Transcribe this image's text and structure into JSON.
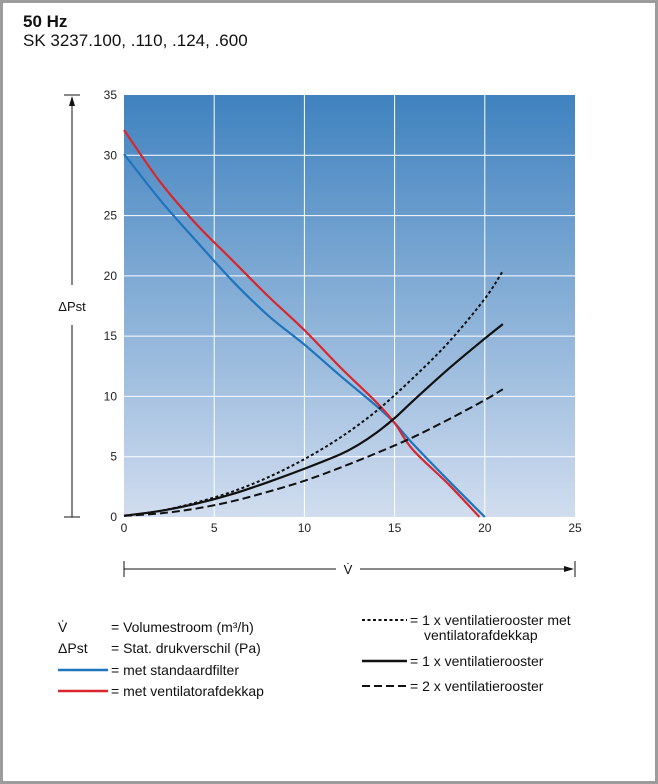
{
  "header": {
    "title": "50 Hz",
    "subtitle": "SK 3237.100, .110, .124, .600"
  },
  "chart_data": {
    "type": "line",
    "xlabel": "V̇",
    "ylabel": "ΔPst",
    "xlim": [
      0,
      25
    ],
    "ylim": [
      0,
      35
    ],
    "xticks": [
      "0",
      "5",
      "10",
      "15",
      "20",
      "25"
    ],
    "yticks": [
      "0",
      "5",
      "10",
      "15",
      "20",
      "25",
      "30",
      "35"
    ],
    "grid": true,
    "background_gradient": [
      "#3f82bf",
      "#d1ddef"
    ],
    "series": [
      {
        "name": "met standaardfilter",
        "color": "#1e74bd",
        "style": "solid",
        "x": [
          0,
          2,
          4,
          6,
          8,
          10,
          12,
          14,
          15,
          16,
          18,
          20
        ],
        "y": [
          30.1,
          26.3,
          22.9,
          19.6,
          16.7,
          14.3,
          11.7,
          9.2,
          7.8,
          6.1,
          3.0,
          0
        ]
      },
      {
        "name": "met ventilatorafdekkap",
        "color": "#d9262c",
        "style": "solid",
        "x": [
          0,
          2,
          4,
          6,
          8,
          10,
          12,
          14,
          15,
          16,
          18,
          19.7
        ],
        "y": [
          32.1,
          27.8,
          24.3,
          21.3,
          18.3,
          15.5,
          12.4,
          9.5,
          7.8,
          5.6,
          2.7,
          0
        ]
      },
      {
        "name": "1 x ventilatierooster met ventilatorafdekkap",
        "color": "#111111",
        "style": "dotted",
        "x": [
          0,
          2,
          4,
          6,
          8,
          10,
          12,
          14,
          16,
          18,
          20,
          21
        ],
        "y": [
          0.1,
          0.5,
          1.2,
          2.1,
          3.3,
          4.8,
          6.6,
          8.8,
          11.5,
          14.5,
          18.1,
          20.4
        ]
      },
      {
        "name": "1 x ventilatierooster",
        "color": "#111111",
        "style": "solid",
        "x": [
          0,
          2,
          4,
          6,
          8,
          10,
          12,
          13,
          14,
          15,
          16,
          18,
          20,
          21
        ],
        "y": [
          0.1,
          0.5,
          1.1,
          1.9,
          2.9,
          4.0,
          5.2,
          6.0,
          7.0,
          8.2,
          9.6,
          12.3,
          14.8,
          16.0
        ]
      },
      {
        "name": "2 x ventilatierooster",
        "color": "#111111",
        "style": "dashed",
        "x": [
          0,
          2,
          4,
          6,
          8,
          10,
          12,
          14,
          16,
          18,
          20,
          21
        ],
        "y": [
          0.1,
          0.3,
          0.7,
          1.3,
          2.1,
          3.0,
          4.1,
          5.3,
          6.6,
          8.1,
          9.7,
          10.6
        ]
      }
    ]
  },
  "legend": {
    "vdot_symbol": "V̇",
    "vdot_text": "= Volumestroom (m³/h)",
    "dp_symbol": "ΔPst",
    "dp_text": "= Stat. drukverschil (Pa)",
    "standaardfilter": "= met standaardfilter",
    "ventilatorafdekkap": "= met ventilatorafdekkap",
    "rooster_kap_line1": "= 1 x ventilatierooster met",
    "rooster_kap_line2": "ventilatorafdekkap",
    "rooster_1": "= 1 x ventilatierooster",
    "rooster_2": "= 2 x ventilatierooster"
  }
}
